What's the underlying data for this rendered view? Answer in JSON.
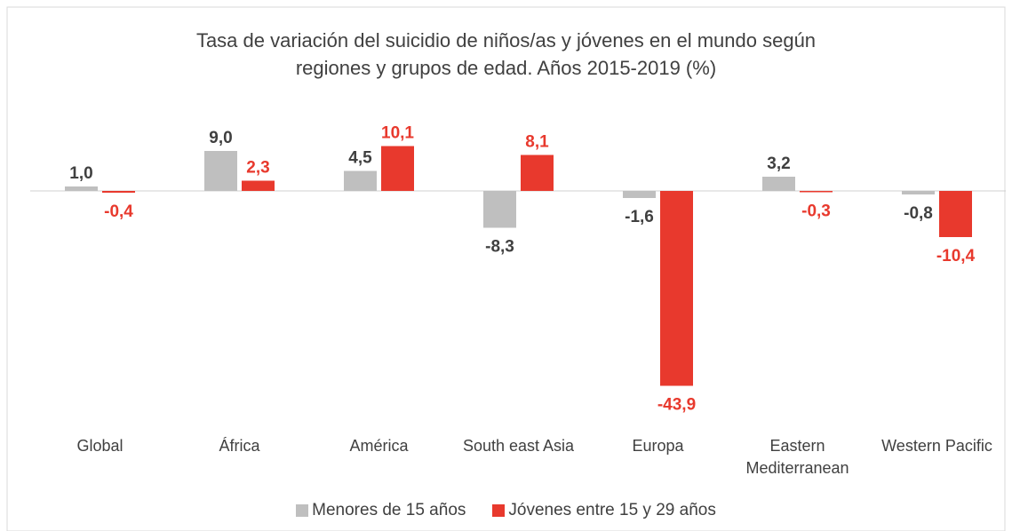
{
  "chart_data": {
    "type": "bar",
    "title": "Tasa de variación del suicidio de niños/as y jóvenes en el mundo  según\nregiones y grupos de edad. Años 2015-2019 (%)",
    "categories": [
      "Global",
      "África",
      "América",
      "South east Asia",
      "Europa",
      "Eastern Mediterranean",
      "Western Pacific"
    ],
    "series": [
      {
        "name": "Menores de 15 años",
        "color": "#bfbfbf",
        "values": [
          1.0,
          9.0,
          4.5,
          -8.3,
          -1.6,
          3.2,
          -0.8
        ],
        "value_labels": [
          "1,0",
          "9,0",
          "4,5",
          "-8,3",
          "-1,6",
          "3,2",
          "-0,8"
        ]
      },
      {
        "name": "Jóvenes entre 15 y 29 años",
        "color": "#e8392d",
        "values": [
          -0.4,
          2.3,
          10.1,
          8.1,
          -43.9,
          -0.3,
          -10.4
        ],
        "value_labels": [
          "-0,4",
          "2,3",
          "10,1",
          "8,1",
          "-43,9",
          "-0,3",
          "-10,4"
        ]
      }
    ]
  }
}
